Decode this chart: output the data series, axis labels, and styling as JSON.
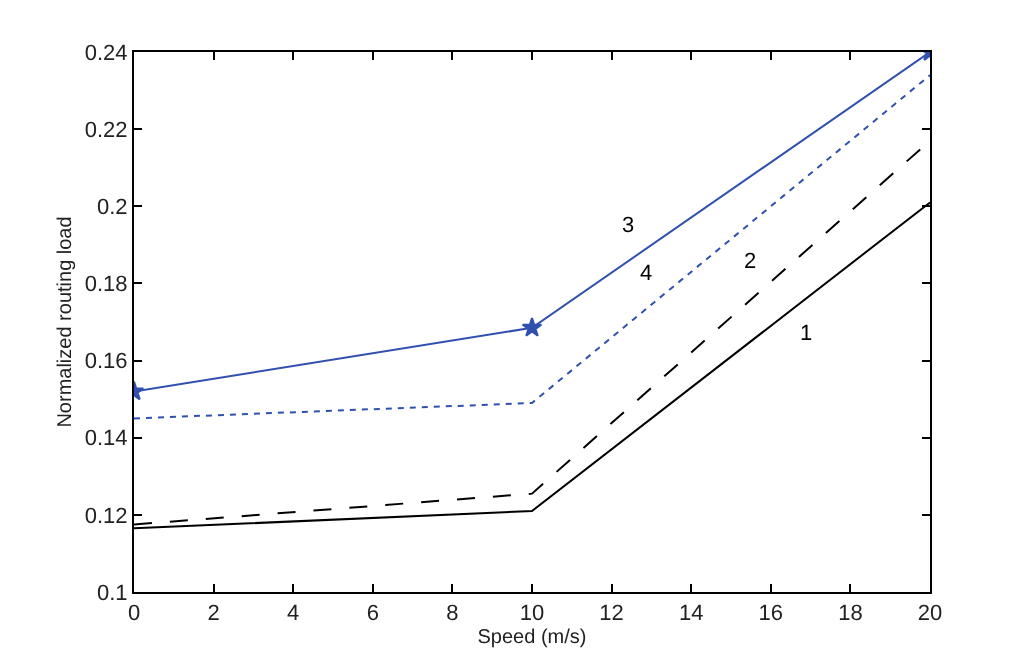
{
  "chart_data": {
    "type": "line",
    "xlabel": "Speed (m/s)",
    "ylabel": "Normalized routing load",
    "x": [
      0,
      10,
      20
    ],
    "series": [
      {
        "name": "1",
        "color": "#000000",
        "line_style": "solid",
        "marker": "none",
        "values": [
          0.1165,
          0.121,
          0.201
        ]
      },
      {
        "name": "2",
        "color": "#000000",
        "line_style": "dashed",
        "marker": "none",
        "values": [
          0.1175,
          0.1255,
          0.217
        ]
      },
      {
        "name": "3",
        "color": "#3050b0",
        "line_style": "solid",
        "marker": "star",
        "values": [
          0.152,
          0.1685,
          0.24
        ]
      },
      {
        "name": "4",
        "color": "#3050b0",
        "line_style": "dotted",
        "marker": "none",
        "values": [
          0.145,
          0.149,
          0.234
        ]
      }
    ],
    "xlim": [
      0,
      20
    ],
    "xticks": [
      0,
      2,
      4,
      6,
      8,
      10,
      12,
      14,
      16,
      18,
      20
    ],
    "ylim": [
      0.1,
      0.24
    ],
    "yticks": [
      0.1,
      0.12,
      0.14,
      0.16,
      0.18,
      0.2,
      0.22,
      0.24
    ],
    "legend": false
  }
}
